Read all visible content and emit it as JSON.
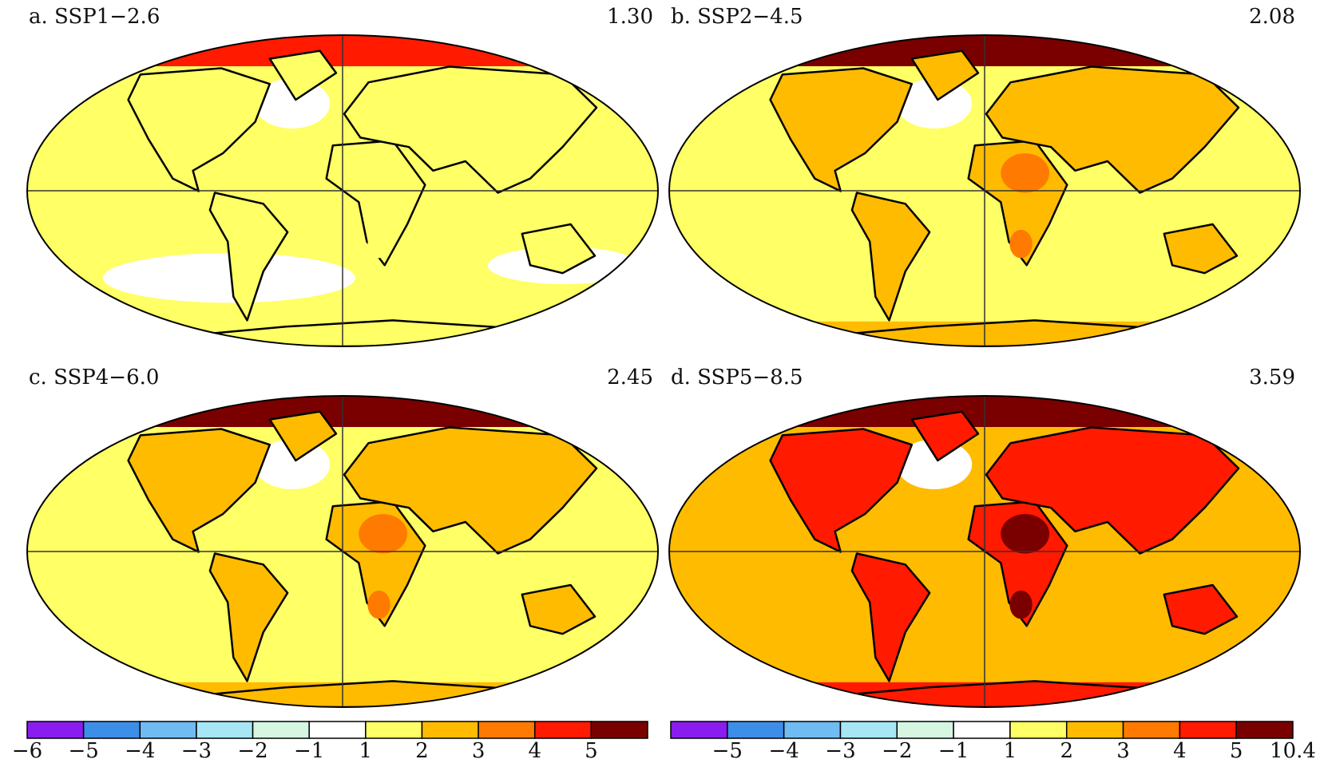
{
  "panels": [
    {
      "title": "a. SSP1−2.6",
      "value": "1.30"
    },
    {
      "title": "b. SSP2−4.5",
      "value": "2.08"
    },
    {
      "title": "c. SSP4−6.0",
      "value": "2.45"
    },
    {
      "title": "d. SSP5−8.5",
      "value": "3.59"
    }
  ],
  "colorbars": [
    {
      "levels": [
        "−6",
        "−5",
        "−4",
        "−3",
        "−2",
        "−1",
        "1",
        "2",
        "3",
        "4",
        "5",
        null
      ]
    },
    {
      "levels": [
        null,
        "−5",
        "−4",
        "−3",
        "−2",
        "−1",
        "1",
        "2",
        "3",
        "4",
        "5",
        "10.4"
      ]
    }
  ],
  "colors": [
    "#8a1cf0",
    "#3d8ee8",
    "#6fbcf2",
    "#a6e6f5",
    "#d6f6e2",
    "#ffffff",
    "#ffff66",
    "#ffbb00",
    "#ff7a00",
    "#ff1a00",
    "#7a0000"
  ]
}
